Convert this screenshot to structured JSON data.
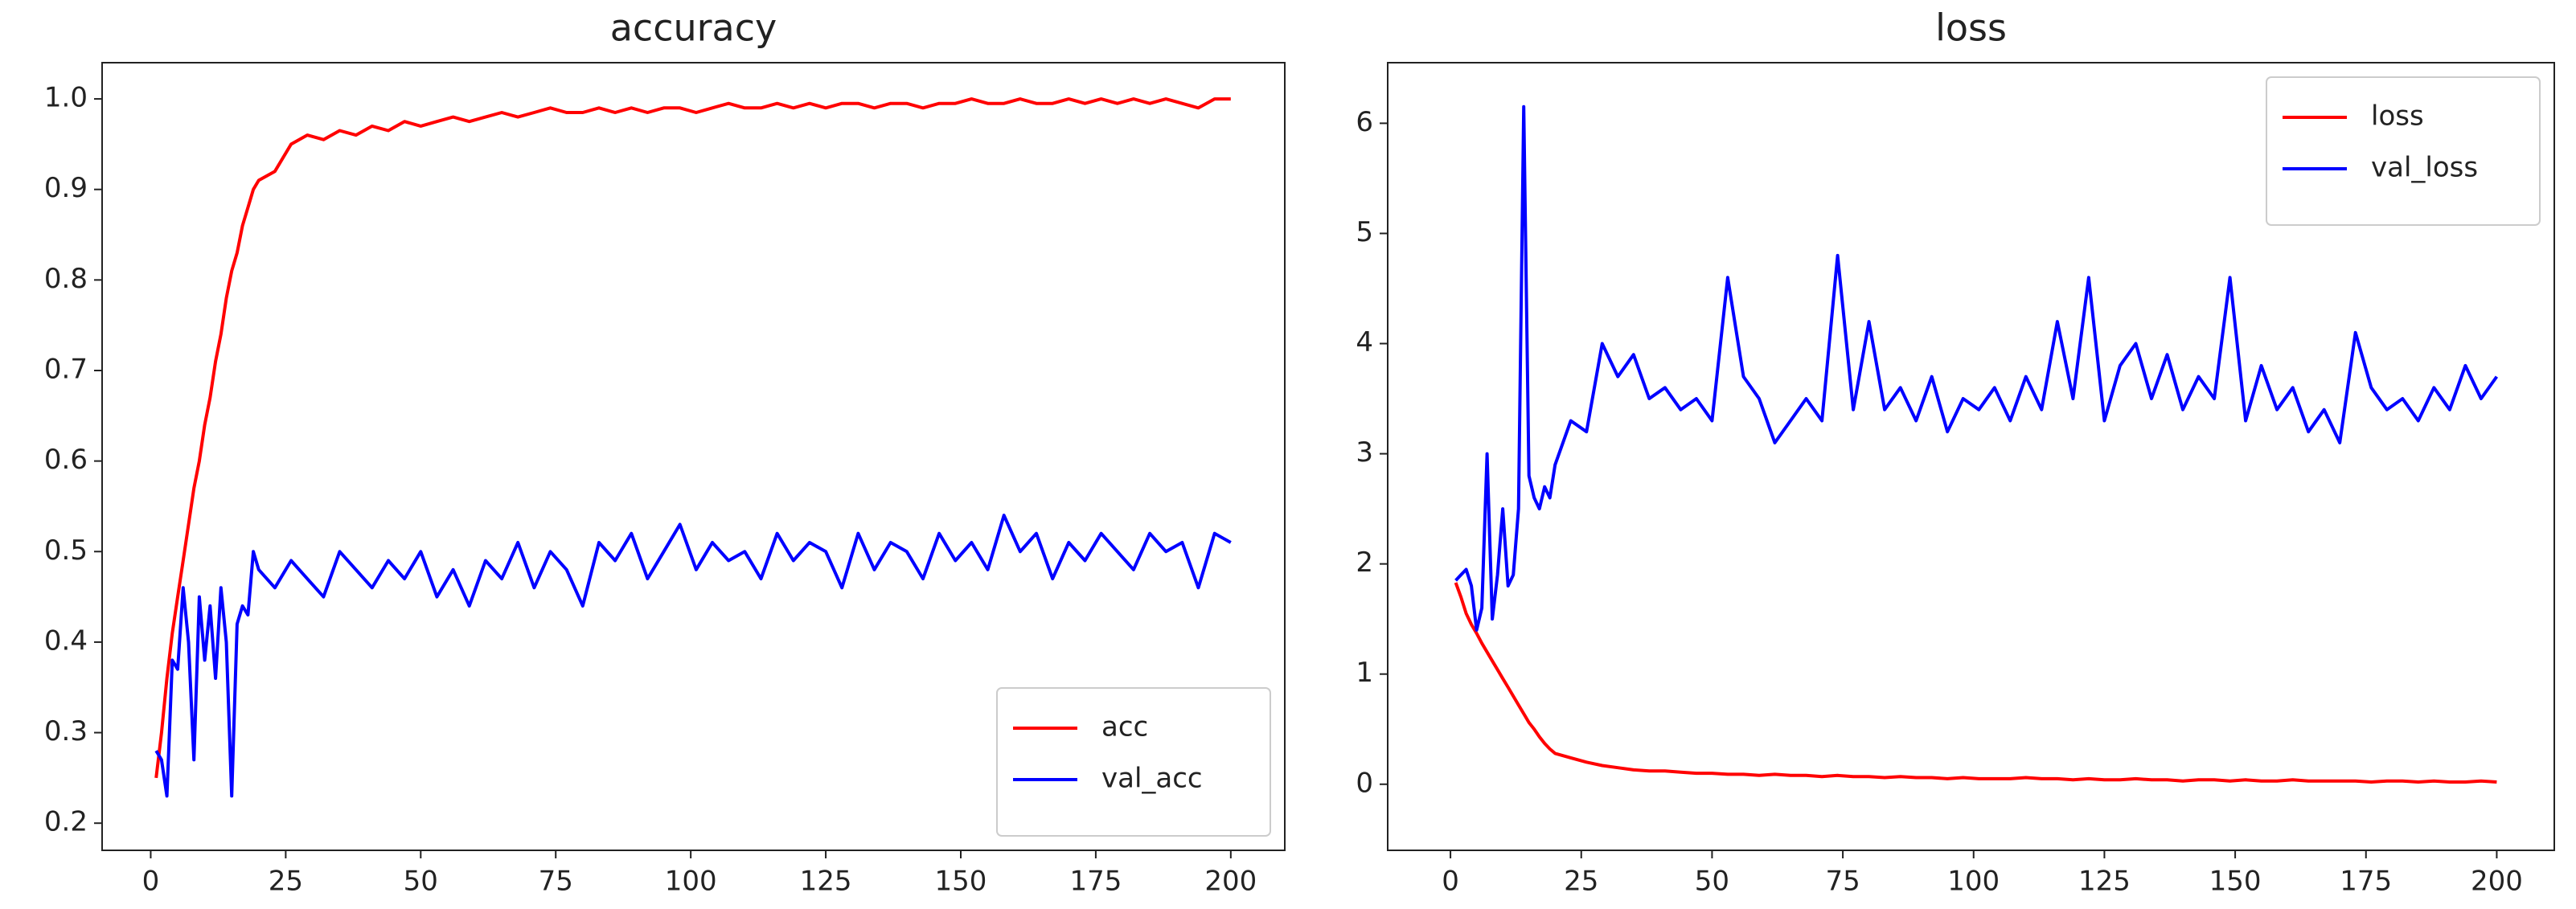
{
  "chart_data": [
    {
      "type": "line",
      "title": "accuracy",
      "legend": "lower right",
      "x": [
        1,
        2,
        3,
        4,
        5,
        6,
        7,
        8,
        9,
        10,
        11,
        12,
        13,
        14,
        15,
        16,
        17,
        18,
        19,
        20,
        23,
        26,
        29,
        32,
        35,
        38,
        41,
        44,
        47,
        50,
        53,
        56,
        59,
        62,
        65,
        68,
        71,
        74,
        77,
        80,
        83,
        86,
        89,
        92,
        95,
        98,
        101,
        104,
        107,
        110,
        113,
        116,
        119,
        122,
        125,
        128,
        131,
        134,
        137,
        140,
        143,
        146,
        149,
        152,
        155,
        158,
        161,
        164,
        167,
        170,
        173,
        176,
        179,
        182,
        185,
        188,
        191,
        194,
        197,
        200
      ],
      "xlim": [
        -9,
        210
      ],
      "xticks": [
        0,
        25,
        50,
        75,
        100,
        125,
        150,
        175,
        200
      ],
      "ylim": [
        0.17,
        1.04
      ],
      "yticks": [
        0.2,
        0.3,
        0.4,
        0.5,
        0.6,
        0.7,
        0.8,
        0.9,
        {
          "value": 1,
          "label": "1.0"
        }
      ],
      "series": [
        {
          "name": "acc",
          "color": "#ff0000",
          "values": [
            0.25,
            0.3,
            0.36,
            0.41,
            0.45,
            0.49,
            0.53,
            0.57,
            0.6,
            0.64,
            0.67,
            0.71,
            0.74,
            0.78,
            0.81,
            0.83,
            0.86,
            0.88,
            0.9,
            0.91,
            0.92,
            0.95,
            0.96,
            0.955,
            0.965,
            0.96,
            0.97,
            0.965,
            0.975,
            0.97,
            0.975,
            0.98,
            0.975,
            0.98,
            0.985,
            0.98,
            0.985,
            0.99,
            0.985,
            0.985,
            0.99,
            0.985,
            0.99,
            0.985,
            0.99,
            0.99,
            0.985,
            0.99,
            0.995,
            0.99,
            0.99,
            0.995,
            0.99,
            0.995,
            0.99,
            0.995,
            0.995,
            0.99,
            0.995,
            0.995,
            0.99,
            0.995,
            0.995,
            1.0,
            0.995,
            0.995,
            1.0,
            0.995,
            0.995,
            1.0,
            0.995,
            1.0,
            0.995,
            1.0,
            0.995,
            1.0,
            0.995,
            0.99,
            1.0,
            1.0
          ]
        },
        {
          "name": "val_acc",
          "color": "#0000ff",
          "values": [
            0.28,
            0.27,
            0.23,
            0.38,
            0.37,
            0.46,
            0.4,
            0.27,
            0.45,
            0.38,
            0.44,
            0.36,
            0.46,
            0.4,
            0.23,
            0.42,
            0.44,
            0.43,
            0.5,
            0.48,
            0.46,
            0.49,
            0.47,
            0.45,
            0.5,
            0.48,
            0.46,
            0.49,
            0.47,
            0.5,
            0.45,
            0.48,
            0.44,
            0.49,
            0.47,
            0.51,
            0.46,
            0.5,
            0.48,
            0.44,
            0.51,
            0.49,
            0.52,
            0.47,
            0.5,
            0.53,
            0.48,
            0.51,
            0.49,
            0.5,
            0.47,
            0.52,
            0.49,
            0.51,
            0.5,
            0.46,
            0.52,
            0.48,
            0.51,
            0.5,
            0.47,
            0.52,
            0.49,
            0.51,
            0.48,
            0.54,
            0.5,
            0.52,
            0.47,
            0.51,
            0.49,
            0.52,
            0.5,
            0.48,
            0.52,
            0.5,
            0.51,
            0.46,
            0.52,
            0.51
          ]
        }
      ]
    },
    {
      "type": "line",
      "title": "loss",
      "legend": "upper right",
      "x": [
        1,
        2,
        3,
        4,
        5,
        6,
        7,
        8,
        9,
        10,
        11,
        12,
        13,
        14,
        15,
        16,
        17,
        18,
        19,
        20,
        23,
        26,
        29,
        32,
        35,
        38,
        41,
        44,
        47,
        50,
        53,
        56,
        59,
        62,
        65,
        68,
        71,
        74,
        77,
        80,
        83,
        86,
        89,
        92,
        95,
        98,
        101,
        104,
        107,
        110,
        113,
        116,
        119,
        122,
        125,
        128,
        131,
        134,
        137,
        140,
        143,
        146,
        149,
        152,
        155,
        158,
        161,
        164,
        167,
        170,
        173,
        176,
        179,
        182,
        185,
        188,
        191,
        194,
        197,
        200
      ],
      "xlim": [
        -12,
        211
      ],
      "xticks": [
        0,
        25,
        50,
        75,
        100,
        125,
        150,
        175,
        200
      ],
      "ylim": [
        -0.6,
        6.55
      ],
      "yticks": [
        0,
        1,
        2,
        3,
        4,
        5,
        6
      ],
      "series": [
        {
          "name": "loss",
          "color": "#ff0000",
          "values": [
            1.83,
            1.7,
            1.55,
            1.45,
            1.37,
            1.28,
            1.2,
            1.12,
            1.04,
            0.96,
            0.88,
            0.8,
            0.72,
            0.64,
            0.56,
            0.5,
            0.43,
            0.37,
            0.32,
            0.28,
            0.24,
            0.2,
            0.17,
            0.15,
            0.13,
            0.12,
            0.12,
            0.11,
            0.1,
            0.1,
            0.09,
            0.09,
            0.08,
            0.09,
            0.08,
            0.08,
            0.07,
            0.08,
            0.07,
            0.07,
            0.06,
            0.07,
            0.06,
            0.06,
            0.05,
            0.06,
            0.05,
            0.05,
            0.05,
            0.06,
            0.05,
            0.05,
            0.04,
            0.05,
            0.04,
            0.04,
            0.05,
            0.04,
            0.04,
            0.03,
            0.04,
            0.04,
            0.03,
            0.04,
            0.03,
            0.03,
            0.04,
            0.03,
            0.03,
            0.03,
            0.03,
            0.02,
            0.03,
            0.03,
            0.02,
            0.03,
            0.02,
            0.02,
            0.03,
            0.02
          ]
        },
        {
          "name": "val_loss",
          "color": "#0000ff",
          "values": [
            1.85,
            1.9,
            1.95,
            1.8,
            1.4,
            1.6,
            3.0,
            1.5,
            1.9,
            2.5,
            1.8,
            1.9,
            2.5,
            6.15,
            2.8,
            2.6,
            2.5,
            2.7,
            2.6,
            2.9,
            3.3,
            3.2,
            4.0,
            3.7,
            3.9,
            3.5,
            3.6,
            3.4,
            3.5,
            3.3,
            4.6,
            3.7,
            3.5,
            3.1,
            3.3,
            3.5,
            3.3,
            4.8,
            3.4,
            4.2,
            3.4,
            3.6,
            3.3,
            3.7,
            3.2,
            3.5,
            3.4,
            3.6,
            3.3,
            3.7,
            3.4,
            4.2,
            3.5,
            4.6,
            3.3,
            3.8,
            4.0,
            3.5,
            3.9,
            3.4,
            3.7,
            3.5,
            4.6,
            3.3,
            3.8,
            3.4,
            3.6,
            3.2,
            3.4,
            3.1,
            4.1,
            3.6,
            3.4,
            3.5,
            3.3,
            3.6,
            3.4,
            3.8,
            3.5,
            3.7
          ]
        }
      ]
    }
  ]
}
